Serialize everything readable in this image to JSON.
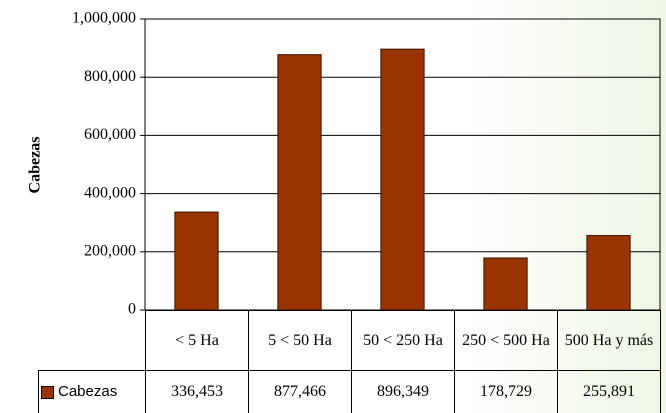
{
  "chart_data": {
    "type": "bar",
    "y_label": "Cabezas",
    "categories": [
      "< 5 Ha",
      "5 < 50 Ha",
      "50 < 250 Ha",
      "250 < 500 Ha",
      "500 Ha y más"
    ],
    "series": [
      {
        "name": "Cabezas",
        "color": "#993300",
        "values": [
          336453,
          877466,
          896349,
          178729,
          255891
        ],
        "value_labels": [
          "336,453",
          "877,466",
          "896,349",
          "178,729",
          "255,891"
        ]
      }
    ],
    "ylim": [
      0,
      1000000
    ],
    "yticks": [
      0,
      {
        "value": 200000,
        "label": "200,000"
      },
      {
        "value": 400000,
        "label": "400,000"
      },
      {
        "value": 600000,
        "label": "600,000"
      },
      {
        "value": 800000,
        "label": "800,000"
      },
      {
        "value": 1000000,
        "label": "1,000,000"
      }
    ],
    "grid": true
  }
}
